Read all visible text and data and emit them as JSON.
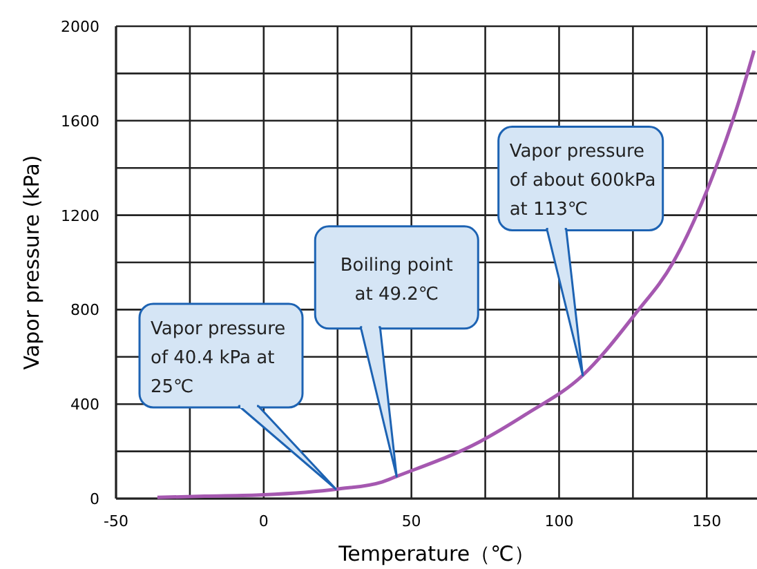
{
  "chart_data": {
    "type": "line",
    "xlabel": "Temperature（℃）",
    "ylabel": "Vapor pressure (kPa)",
    "xlim": [
      -50,
      167
    ],
    "ylim": [
      0,
      2000
    ],
    "xticks": [
      -50,
      {
        "value": -25,
        "label": null
      },
      0,
      {
        "value": 25,
        "label": null
      },
      50,
      {
        "value": 75,
        "label": null
      },
      100,
      {
        "value": 125,
        "label": null
      },
      150
    ],
    "yticks": [
      0,
      {
        "value": 200,
        "label": null
      },
      400,
      {
        "value": 600,
        "label": null
      },
      800,
      {
        "value": 1000,
        "label": null
      },
      1200,
      {
        "value": 1400,
        "label": null
      },
      1600,
      {
        "value": 1800,
        "label": null
      },
      2000
    ],
    "grid": true,
    "marker": "none",
    "line_style": "solid",
    "series": [
      {
        "color": "#a558b0",
        "x": [
          -36,
          -20,
          0,
          25,
          40,
          45,
          73,
          88.8,
          108,
          126,
          138.6,
          151.5,
          160.4,
          166
        ],
        "values": [
          5,
          10,
          16,
          40.4,
          70,
          94,
          240,
          357,
          522,
          785,
          1000,
          1350,
          1663,
          1897
        ]
      }
    ],
    "annotations": [
      "Vapor pressure\nof 40.4 kPa at\n25℃",
      {
        "text": "Boiling point\nat 49.2℃",
        "x": 45,
        "y": 94
      },
      {
        "text": "Vapor pressure\nof about 600kPa\nat 113℃",
        "x": 108,
        "y": 522
      }
    ]
  }
}
